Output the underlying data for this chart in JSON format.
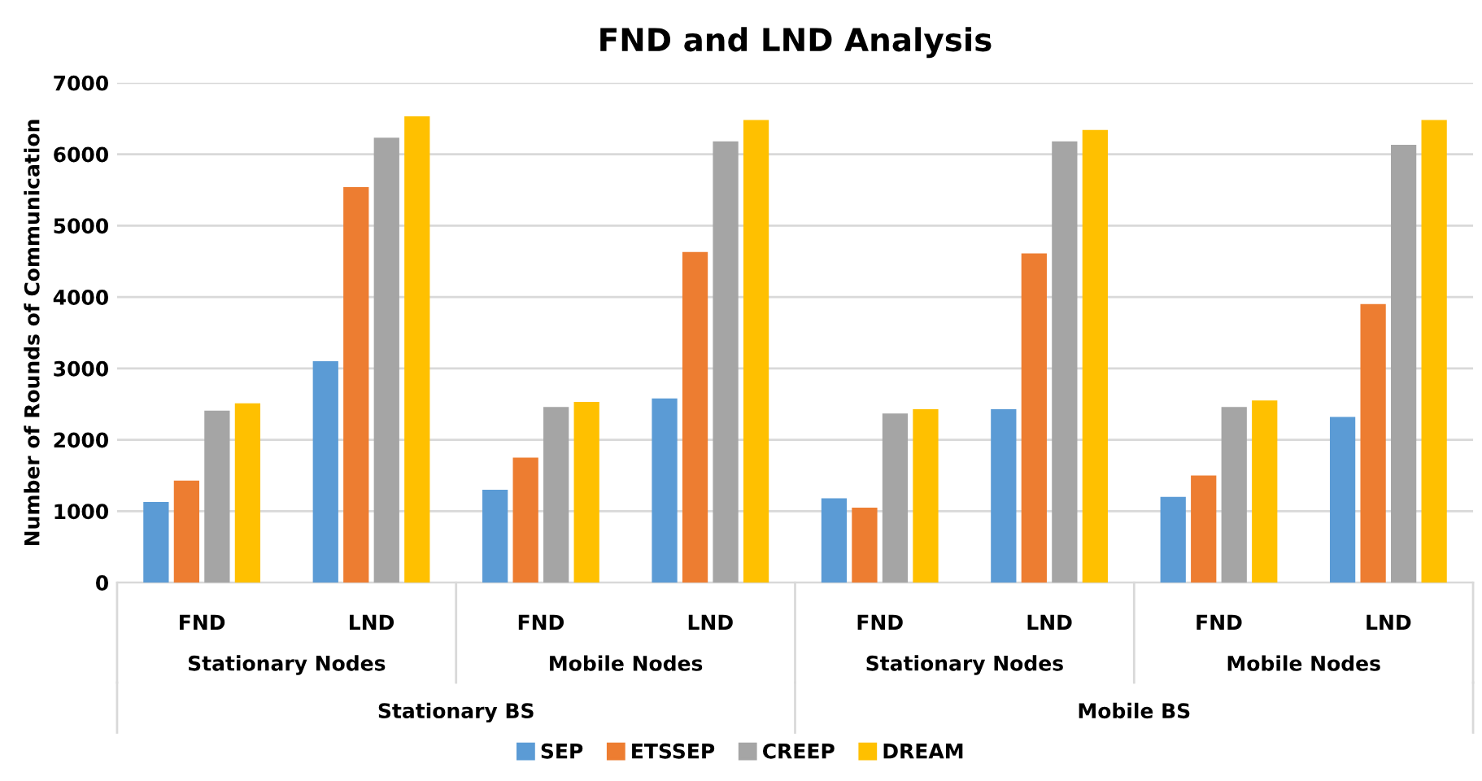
{
  "chart_data": {
    "type": "bar",
    "title": "FND and LND Analysis",
    "ylabel": "Number of Rounds of Communication",
    "categories": [
      "FND",
      "LND",
      "FND",
      "LND",
      "FND",
      "LND",
      "FND",
      "LND"
    ],
    "series": [
      {
        "name": "SEP",
        "color": "#5b9bd5",
        "values": [
          1130,
          3100,
          1300,
          2580,
          1180,
          2430,
          1200,
          2320
        ]
      },
      {
        "name": "ETSSEP",
        "color": "#ed7d31",
        "values": [
          1430,
          5540,
          1750,
          4630,
          1050,
          4610,
          1500,
          3900
        ]
      },
      {
        "name": "CREEP",
        "color": "#a5a5a5",
        "values": [
          2410,
          6230,
          2460,
          6180,
          2370,
          6180,
          2460,
          6130
        ]
      },
      {
        "name": "DREAM",
        "color": "#ffc000",
        "values": [
          2510,
          6530,
          2530,
          6480,
          2430,
          6340,
          2550,
          6480
        ]
      }
    ],
    "annotations": [
      "Stationary Nodes",
      "Mobile Nodes",
      "Stationary Nodes",
      "Mobile Nodes",
      "Stationary BS",
      "Mobile BS"
    ],
    "ylim": [
      0,
      7000
    ],
    "yticks": [
      0,
      1000,
      2000,
      3000,
      4000,
      5000,
      6000,
      7000
    ],
    "grid": "y",
    "legend": "bottom"
  }
}
